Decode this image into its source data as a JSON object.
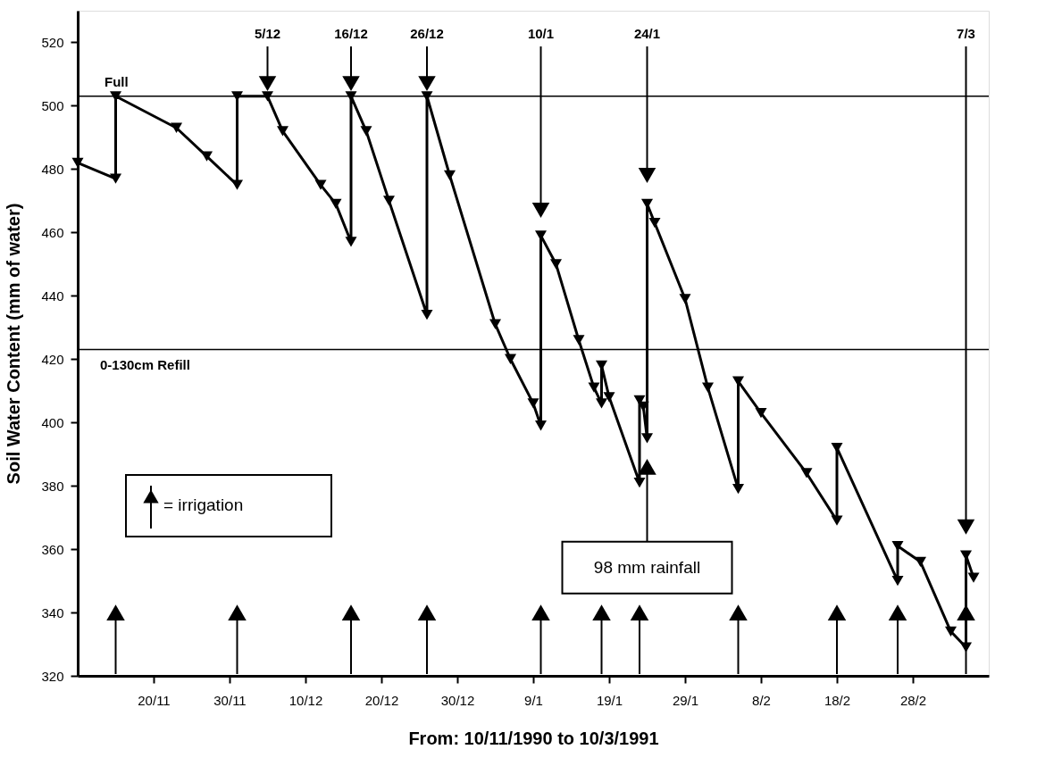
{
  "chart_data": {
    "type": "line",
    "xlabel": "From: 10/11/1990 to 10/3/1991",
    "ylabel": "Soil Water Content (mm of water)",
    "xlim": [
      "1990-11-10",
      "1991-03-10"
    ],
    "xticks": [
      {
        "value": "1990-11-20",
        "label": "20/11"
      },
      {
        "value": "1990-11-30",
        "label": "30/11"
      },
      {
        "value": "1990-12-10",
        "label": "10/12"
      },
      {
        "value": "1990-12-20",
        "label": "20/12"
      },
      {
        "value": "1990-12-30",
        "label": "30/12"
      },
      {
        "value": "1991-01-09",
        "label": "9/1"
      },
      {
        "value": "1991-01-19",
        "label": "19/1"
      },
      {
        "value": "1991-01-29",
        "label": "29/1"
      },
      {
        "value": "1991-02-08",
        "label": "8/2"
      },
      {
        "value": "1991-02-18",
        "label": "18/2"
      },
      {
        "value": "1991-02-28",
        "label": "28/2"
      }
    ],
    "ylim": [
      320,
      530
    ],
    "yticks": [
      320,
      340,
      360,
      380,
      400,
      420,
      440,
      460,
      480,
      500,
      520
    ],
    "legend": "left",
    "series": [
      {
        "color": "#000000",
        "marker": "triangle",
        "x": [
          "1990-11-10",
          "1990-11-15",
          "1990-11-15",
          "1990-11-23",
          "1990-11-27",
          "1990-12-01",
          "1990-12-01",
          "1990-12-05",
          "1990-12-07",
          "1990-12-12",
          "1990-12-14",
          "1990-12-16",
          "1990-12-16",
          "1990-12-18",
          "1990-12-21",
          "1990-12-26",
          "1990-12-26",
          "1990-12-29",
          "1991-01-04",
          "1991-01-06",
          "1991-01-09",
          "1991-01-10",
          "1991-01-10",
          "1991-01-12",
          "1991-01-15",
          "1991-01-17",
          "1991-01-18",
          "1991-01-18",
          "1991-01-19",
          "1991-01-23",
          "1991-01-23",
          "1991-01-23T12:00",
          "1991-01-24",
          "1991-01-24",
          "1991-01-25",
          "1991-01-29",
          "1991-02-01",
          "1991-02-05",
          "1991-02-05",
          "1991-02-08",
          "1991-02-14",
          "1991-02-18",
          "1991-02-18",
          "1991-02-26",
          "1991-02-26",
          "1991-03-01",
          "1991-03-05",
          "1991-03-07",
          "1991-03-07",
          "1991-03-08"
        ],
        "values": [
          482,
          477,
          503,
          493,
          484,
          475,
          503,
          503,
          492,
          475,
          469,
          457,
          503,
          492,
          470,
          434,
          503,
          478,
          431,
          420,
          406,
          399,
          459,
          450,
          426,
          411,
          406,
          418,
          408,
          381,
          407,
          405,
          395,
          469,
          463,
          439,
          411,
          379,
          413,
          403,
          384,
          369,
          392,
          350,
          361,
          356,
          334,
          329,
          358,
          351
        ]
      },
      {
        "name": "= irrigation",
        "type": "lollipop",
        "color": "#000000",
        "marker": "triangle",
        "x": [
          "1990-11-15",
          "1990-12-01",
          "1990-12-16",
          "1990-12-26",
          "1991-01-10",
          "1991-01-18",
          "1991-01-23",
          "1991-02-05",
          "1991-02-18",
          "1991-02-26",
          "1991-03-07"
        ],
        "values": [
          340,
          340,
          340,
          340,
          340,
          340,
          340,
          340,
          340,
          340,
          340
        ]
      }
    ],
    "ref_lines": [
      {
        "axis": "y",
        "value": 503,
        "label": "Full"
      },
      {
        "axis": "y",
        "value": 423,
        "label": "0-130cm Refill"
      }
    ],
    "annotations": [
      {
        "text": "5/12",
        "x": "1990-12-05",
        "y": 507
      },
      {
        "text": "16/12",
        "x": "1990-12-16",
        "y": 507
      },
      {
        "text": "26/12",
        "x": "1990-12-26",
        "y": 507
      },
      {
        "text": "10/1",
        "x": "1991-01-10",
        "y": 467
      },
      {
        "text": "24/1",
        "x": "1991-01-24",
        "y": 478
      },
      {
        "text": "7/3",
        "x": "1991-03-07",
        "y": 367
      },
      {
        "text": "98 mm rainfall",
        "x": "1991-01-24",
        "y": 386
      }
    ]
  }
}
